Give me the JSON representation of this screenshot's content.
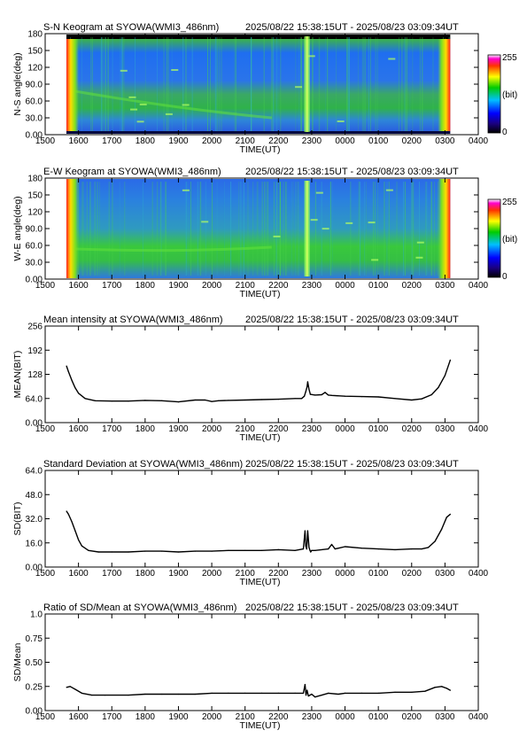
{
  "x_ticks": [
    "1500",
    "1600",
    "1700",
    "1800",
    "1900",
    "2000",
    "2100",
    "2200",
    "2300",
    "0000",
    "0100",
    "0200",
    "0300",
    "0400"
  ],
  "x_axis_label": "TIME(UT)",
  "time_range": "2025/08/22 15:38:15UT - 2025/08/23 03:09:34UT",
  "colorbar": {
    "max_label": "255",
    "unit_label": "(bit)",
    "min_label": "0"
  },
  "colors": {
    "ink": "#000000",
    "keogram_base": "#2e5fe6",
    "keogram_green": "#33cc33"
  },
  "keograms": [
    {
      "title": "S-N Keogram at SYOWA(WMI3_486nm)",
      "ylabel": "N-S angle(deg)",
      "y_ticks": [
        "0.00",
        "30.0",
        "60.0",
        "90.0",
        "120",
        "150",
        "180"
      ],
      "data_start": 15.637,
      "data_end": 27.159
    },
    {
      "title": "E-W Keogram at SYOWA(WMI3_486nm)",
      "ylabel": "W-E angle(deg)",
      "y_ticks": [
        "0.00",
        "30.0",
        "60.0",
        "90.0",
        "120",
        "150",
        "180"
      ],
      "data_start": 15.637,
      "data_end": 27.159
    }
  ],
  "chart_data": [
    {
      "type": "line",
      "title": "Mean intensity at SYOWA(WMI3_486nm)",
      "xlabel": "TIME(UT)",
      "ylabel": "MEAN(BIT)",
      "y_ticks": [
        "0.00",
        "64.0",
        "128",
        "192",
        "256"
      ],
      "xlim": [
        15,
        28
      ],
      "ylim": [
        0,
        256
      ],
      "series": [
        {
          "x": [
            15.64,
            15.7,
            15.8,
            15.9,
            16.0,
            16.2,
            16.5,
            17.0,
            17.5,
            18.0,
            18.5,
            19.0,
            19.5,
            19.8,
            20.0,
            20.2,
            20.5,
            21.0,
            21.5,
            22.0,
            22.5,
            22.7,
            22.78,
            22.82,
            22.86,
            22.88,
            22.92,
            22.96,
            23.1,
            23.3,
            23.4,
            23.5,
            23.6,
            24.0,
            24.5,
            25.0,
            25.5,
            26.0,
            26.3,
            26.6,
            26.8,
            27.0,
            27.16
          ],
          "y": [
            150,
            135,
            112,
            92,
            78,
            64,
            58,
            57,
            57,
            59,
            58,
            55,
            60,
            60,
            56,
            58,
            59,
            60,
            61,
            62,
            64,
            64,
            70,
            82,
            95,
            108,
            88,
            75,
            73,
            74,
            80,
            73,
            72,
            70,
            69,
            68,
            64,
            60,
            63,
            74,
            93,
            125,
            166
          ]
        }
      ]
    },
    {
      "type": "line",
      "title": "Standard Deviation at SYOWA(WMI3_486nm)",
      "xlabel": "TIME(UT)",
      "ylabel": "SD(BIT)",
      "y_ticks": [
        "0.00",
        "16.0",
        "32.0",
        "48.0",
        "64.0"
      ],
      "xlim": [
        15,
        28
      ],
      "ylim": [
        0,
        64
      ],
      "series": [
        {
          "x": [
            15.64,
            15.7,
            15.8,
            15.9,
            16.0,
            16.1,
            16.3,
            16.6,
            17.0,
            17.5,
            18.0,
            18.5,
            19.0,
            19.5,
            20.0,
            20.5,
            21.0,
            21.5,
            22.0,
            22.5,
            22.75,
            22.8,
            22.82,
            22.85,
            22.88,
            22.92,
            22.95,
            22.97,
            23.0,
            23.1,
            23.5,
            23.6,
            23.7,
            24.0,
            24.5,
            25.0,
            25.5,
            26.0,
            26.3,
            26.5,
            26.7,
            26.9,
            27.05,
            27.16
          ],
          "y": [
            37,
            35,
            30,
            24,
            18,
            14,
            11,
            10,
            10,
            10,
            10.5,
            10.5,
            10,
            10.5,
            10.5,
            11,
            11,
            11,
            11.5,
            11,
            12,
            24,
            14,
            12,
            24,
            13,
            11,
            10,
            11,
            11,
            12,
            15,
            12,
            13.5,
            12.5,
            12,
            11.5,
            12,
            12,
            13,
            17,
            25,
            33,
            35
          ]
        }
      ]
    },
    {
      "type": "line",
      "title": "Ratio of SD/Mean at SYOWA(WMI3_486nm)",
      "xlabel": "TIME(UT)",
      "ylabel": "SD/Mean",
      "y_ticks": [
        "0.00",
        "0.25",
        "0.50",
        "0.75",
        "1.0"
      ],
      "xlim": [
        15,
        28
      ],
      "ylim": [
        0,
        1.0
      ],
      "series": [
        {
          "x": [
            15.64,
            15.75,
            15.9,
            16.1,
            16.4,
            16.8,
            17.5,
            18.0,
            18.5,
            19.0,
            19.5,
            20.0,
            20.5,
            21.0,
            21.5,
            22.0,
            22.5,
            22.75,
            22.8,
            22.83,
            22.86,
            22.9,
            23.0,
            23.1,
            23.3,
            23.5,
            23.8,
            24.0,
            24.5,
            25.0,
            25.5,
            26.0,
            26.4,
            26.7,
            26.9,
            27.05,
            27.16
          ],
          "y": [
            0.24,
            0.25,
            0.22,
            0.18,
            0.16,
            0.16,
            0.16,
            0.17,
            0.17,
            0.17,
            0.17,
            0.18,
            0.18,
            0.18,
            0.18,
            0.18,
            0.18,
            0.18,
            0.27,
            0.16,
            0.21,
            0.15,
            0.17,
            0.14,
            0.16,
            0.18,
            0.17,
            0.18,
            0.18,
            0.18,
            0.19,
            0.19,
            0.2,
            0.24,
            0.25,
            0.23,
            0.21
          ]
        }
      ]
    }
  ]
}
